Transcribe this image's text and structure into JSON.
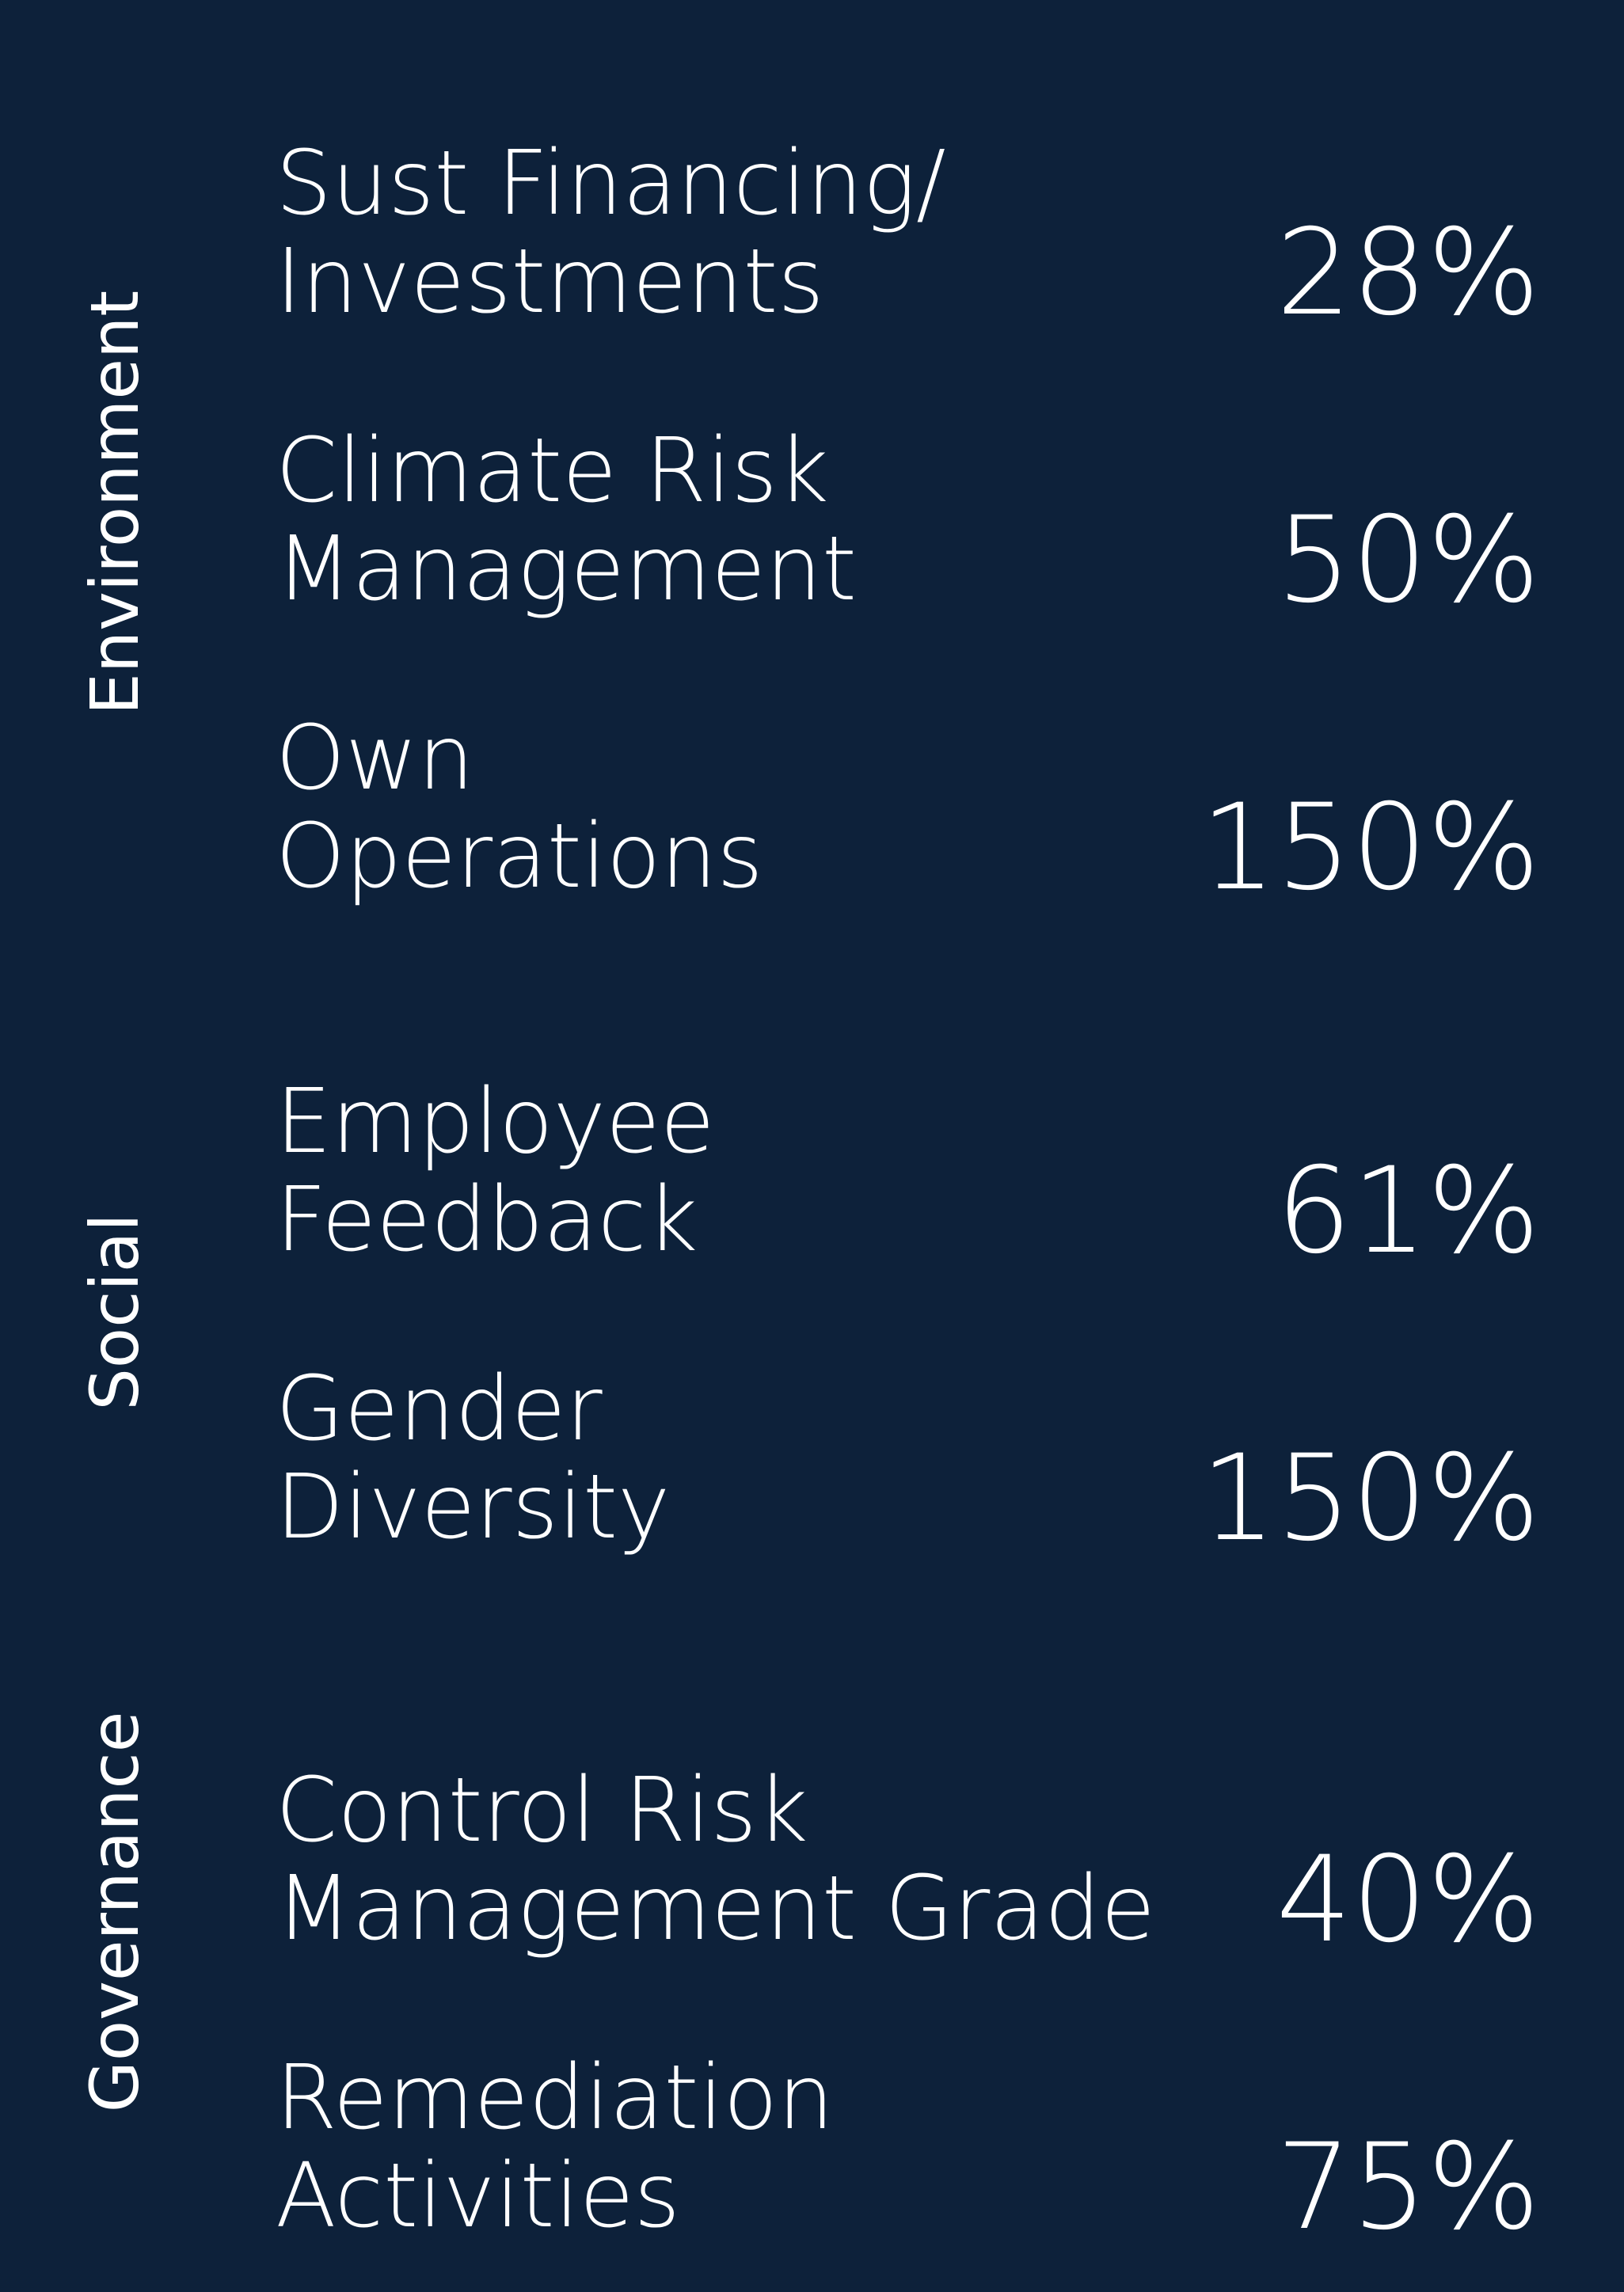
{
  "colors": {
    "background": "#0d213a",
    "text": "#ffffff"
  },
  "sections": [
    {
      "label": "Environment",
      "items": [
        {
          "name_lines": [
            "Sust Financing/",
            "Investments"
          ],
          "value": "28%"
        },
        {
          "name_lines": [
            "Climate Risk",
            "Management"
          ],
          "value": "50%"
        },
        {
          "name_lines": [
            "Own",
            "Operations"
          ],
          "value": "150%"
        }
      ]
    },
    {
      "label": "Social",
      "items": [
        {
          "name_lines": [
            "Employee",
            "Feedback"
          ],
          "value": "61%"
        },
        {
          "name_lines": [
            "Gender",
            "Diversity"
          ],
          "value": "150%"
        }
      ]
    },
    {
      "label": "Governance",
      "items": [
        {
          "name_lines": [
            "Control Risk",
            "Management Grade"
          ],
          "value": "40%"
        },
        {
          "name_lines": [
            "Remediation",
            "Activities"
          ],
          "value": "75%"
        }
      ]
    }
  ]
}
